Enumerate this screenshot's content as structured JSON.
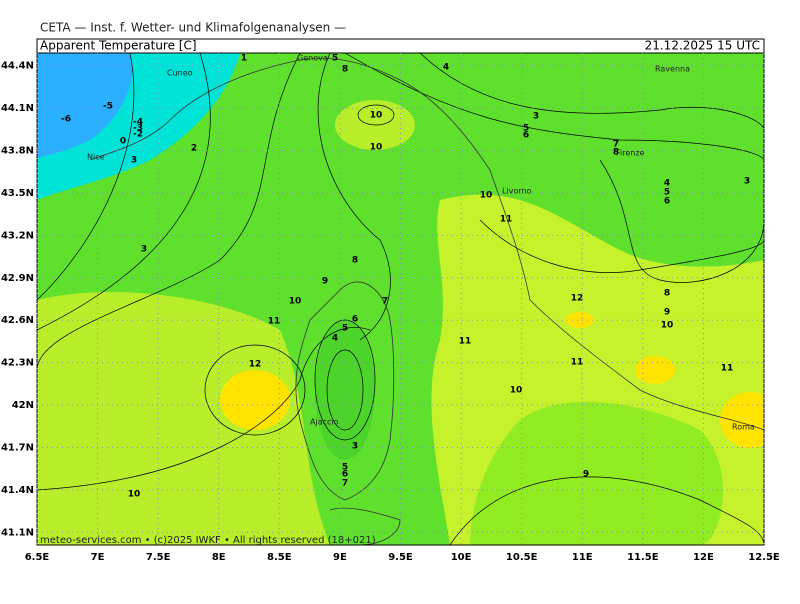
{
  "header": {
    "institute": "CETA — Inst. f. Wetter- und Klimafolgenanalysen —",
    "title": "Apparent Temperature [C]",
    "time": "21.12.2025 15 UTC"
  },
  "map": {
    "xlim": [
      6.5,
      12.5
    ],
    "ylim": [
      41.01,
      44.49
    ],
    "xticks": [
      {
        "value": 6.5,
        "label": "6.5E"
      },
      {
        "value": 7,
        "label": "7E"
      },
      {
        "value": 7.5,
        "label": "7.5E"
      },
      {
        "value": 8,
        "label": "8E"
      },
      {
        "value": 8.5,
        "label": "8.5E"
      },
      {
        "value": 9,
        "label": "9E"
      },
      {
        "value": 9.5,
        "label": "9.5E"
      },
      {
        "value": 10,
        "label": "10E"
      },
      {
        "value": 10.5,
        "label": "10.5E"
      },
      {
        "value": 11,
        "label": "11E"
      },
      {
        "value": 11.5,
        "label": "11.5E"
      },
      {
        "value": 12,
        "label": "12E"
      },
      {
        "value": 12.5,
        "label": "12.5E"
      }
    ],
    "yticks": [
      {
        "value": 44.4,
        "label": "44.4N"
      },
      {
        "value": 44.1,
        "label": "44.1N"
      },
      {
        "value": 43.8,
        "label": "43.8N"
      },
      {
        "value": 43.5,
        "label": "43.5N"
      },
      {
        "value": 43.2,
        "label": "43.2N"
      },
      {
        "value": 42.9,
        "label": "42.9N"
      },
      {
        "value": 42.6,
        "label": "42.6N"
      },
      {
        "value": 42.3,
        "label": "42.3N"
      },
      {
        "value": 42,
        "label": "42N"
      },
      {
        "value": 41.7,
        "label": "41.7N"
      },
      {
        "value": 41.4,
        "label": "41.4N"
      },
      {
        "value": 41.1,
        "label": "41.1N"
      }
    ],
    "cities": [
      "Cuneo",
      "Genova",
      "Ravenna",
      "Nice",
      "Firenze",
      "Livorno",
      "Ajaccio",
      "Roma"
    ],
    "contour_labels": [
      1,
      5,
      8,
      4,
      -5,
      -6,
      -4,
      -3,
      -2,
      0,
      3,
      2,
      3,
      3,
      5,
      6,
      7,
      8,
      4,
      5,
      6,
      3,
      10,
      10,
      10,
      11,
      8,
      9,
      10,
      11,
      7,
      6,
      5,
      4,
      12,
      12,
      11,
      11,
      8,
      9,
      10,
      11,
      10,
      3,
      5,
      6,
      7,
      9,
      10
    ]
  },
  "footer": "meteo-services.com • (c)2025 IWKF • All rights reserved (18+021)"
}
